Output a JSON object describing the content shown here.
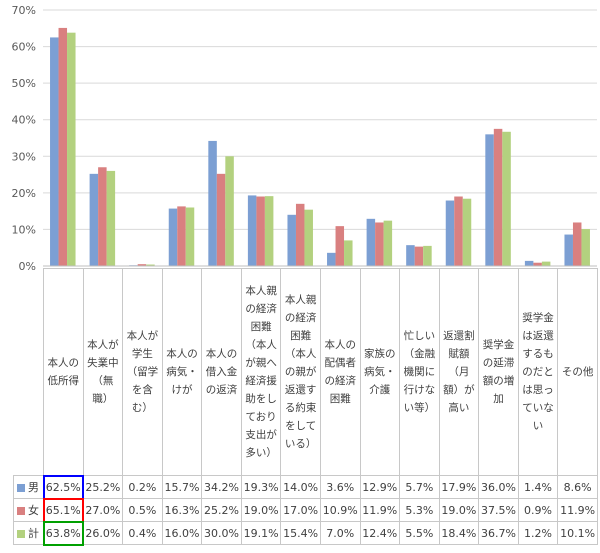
{
  "chart_data": {
    "type": "bar",
    "ylim": [
      0,
      70
    ],
    "yticks": [
      "0%",
      "10%",
      "20%",
      "30%",
      "40%",
      "50%",
      "60%",
      "70%"
    ],
    "categories": [
      "本人の\n低所得",
      "本人が\n失業中\n（無\n職）",
      "本人が\n学生\n（留学\nを含\nむ）",
      "本人の\n病気・\nけが",
      "本人の\n借入金\nの返済",
      "本人親\nの経済\n困難\n（本人\nが親へ\n経済援\n助をし\nており\n支出が\n多い）",
      "本人親\nの経済\n困難\n（本人\nの親が\n返還す\nる約束\nをして\nいる）",
      "本人の\n配偶者\nの経済\n困難",
      "家族の\n病気・\n介護",
      "忙しい\n（金融\n機関に\n行けな\nい等）",
      "返還割\n賦額\n（月\n額）が\n高い",
      "奨学金\nの延滞\n額の増\n加",
      "奨学金\nは返還\nするも\nのだと\nは思っ\nていな\nい",
      "その他"
    ],
    "series": [
      {
        "name": "男",
        "color": "#7c9fd3",
        "values": [
          62.5,
          25.2,
          0.2,
          15.7,
          34.2,
          19.3,
          14.0,
          3.6,
          12.9,
          5.7,
          17.9,
          36.0,
          1.4,
          8.6
        ],
        "labels": [
          "62.5%",
          "25.2%",
          "0.2%",
          "15.7%",
          "34.2%",
          "19.3%",
          "14.0%",
          "3.6%",
          "12.9%",
          "5.7%",
          "17.9%",
          "36.0%",
          "1.4%",
          "8.6%"
        ]
      },
      {
        "name": "女",
        "color": "#d98080",
        "values": [
          65.1,
          27.0,
          0.5,
          16.3,
          25.2,
          19.0,
          17.0,
          10.9,
          11.9,
          5.3,
          19.0,
          37.5,
          0.9,
          11.9
        ],
        "labels": [
          "65.1%",
          "27.0%",
          "0.5%",
          "16.3%",
          "25.2%",
          "19.0%",
          "17.0%",
          "10.9%",
          "11.9%",
          "5.3%",
          "19.0%",
          "37.5%",
          "0.9%",
          "11.9%"
        ]
      },
      {
        "name": "計",
        "color": "#b3d17f",
        "values": [
          63.8,
          26.0,
          0.4,
          16.0,
          30.0,
          19.1,
          15.4,
          7.0,
          12.4,
          5.5,
          18.4,
          36.7,
          1.2,
          10.1
        ],
        "labels": [
          "63.8%",
          "26.0%",
          "0.4%",
          "16.0%",
          "30.0%",
          "19.1%",
          "15.4%",
          "7.0%",
          "12.4%",
          "5.5%",
          "18.4%",
          "36.7%",
          "1.2%",
          "10.1%"
        ]
      }
    ],
    "highlight_colors": [
      "#0000ff",
      "#ff0000",
      "#00a000"
    ],
    "grid": true,
    "legend": "table-rows"
  }
}
